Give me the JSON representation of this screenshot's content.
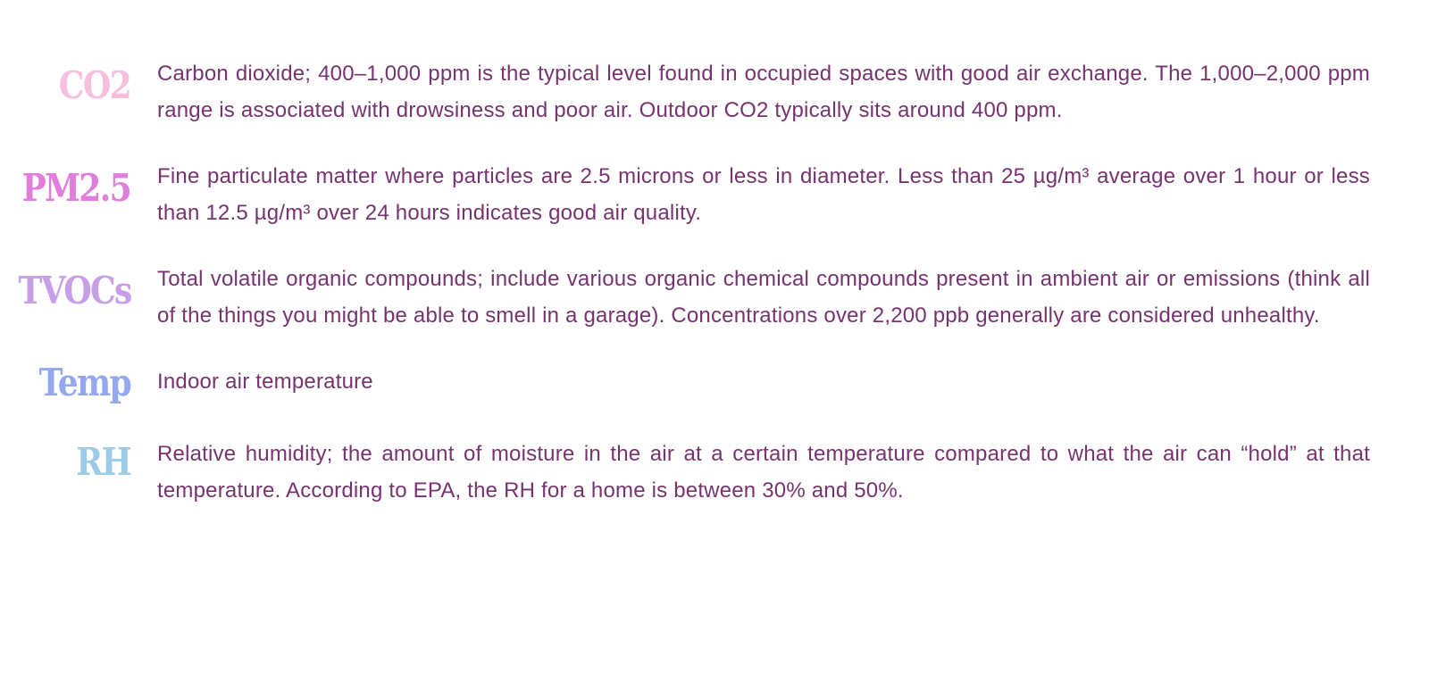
{
  "colors": {
    "text": "#77336f",
    "co2": "#f8bede",
    "pm25": "#e07ddd",
    "tvocs": "#c79ee8",
    "temp": "#93a8ee",
    "rh": "#9ccbe8"
  },
  "glossary": {
    "co2": {
      "term": "CO2",
      "description": "Carbon dioxide; 400–1,000 ppm is the typical level found in occupied spaces with good air exchange. The 1,000–2,000 ppm range is associated with drowsiness and poor air. Outdoor CO2 typically sits around 400 ppm."
    },
    "pm25": {
      "term": "PM2.5",
      "description": "Fine particulate matter where particles are 2.5 microns or less in diameter. Less than 25 µg/m³ average over 1 hour or less than 12.5 µg/m³ over 24 hours indicates good air quality."
    },
    "tvocs": {
      "term": "TVOCs",
      "description": "Total volatile organic compounds; include various organic chemical compounds present in ambient air or emissions (think all of the things you might be able to smell in a garage). Concentrations over 2,200 ppb generally are considered unhealthy."
    },
    "temp": {
      "term": "Temp",
      "description": "Indoor air temperature"
    },
    "rh": {
      "term": "RH",
      "description": "Relative humidity; the amount of moisture in the air at a certain temperature compared to what the air can “hold” at that temperature. According to EPA, the RH for a home is between 30% and 50%."
    }
  }
}
